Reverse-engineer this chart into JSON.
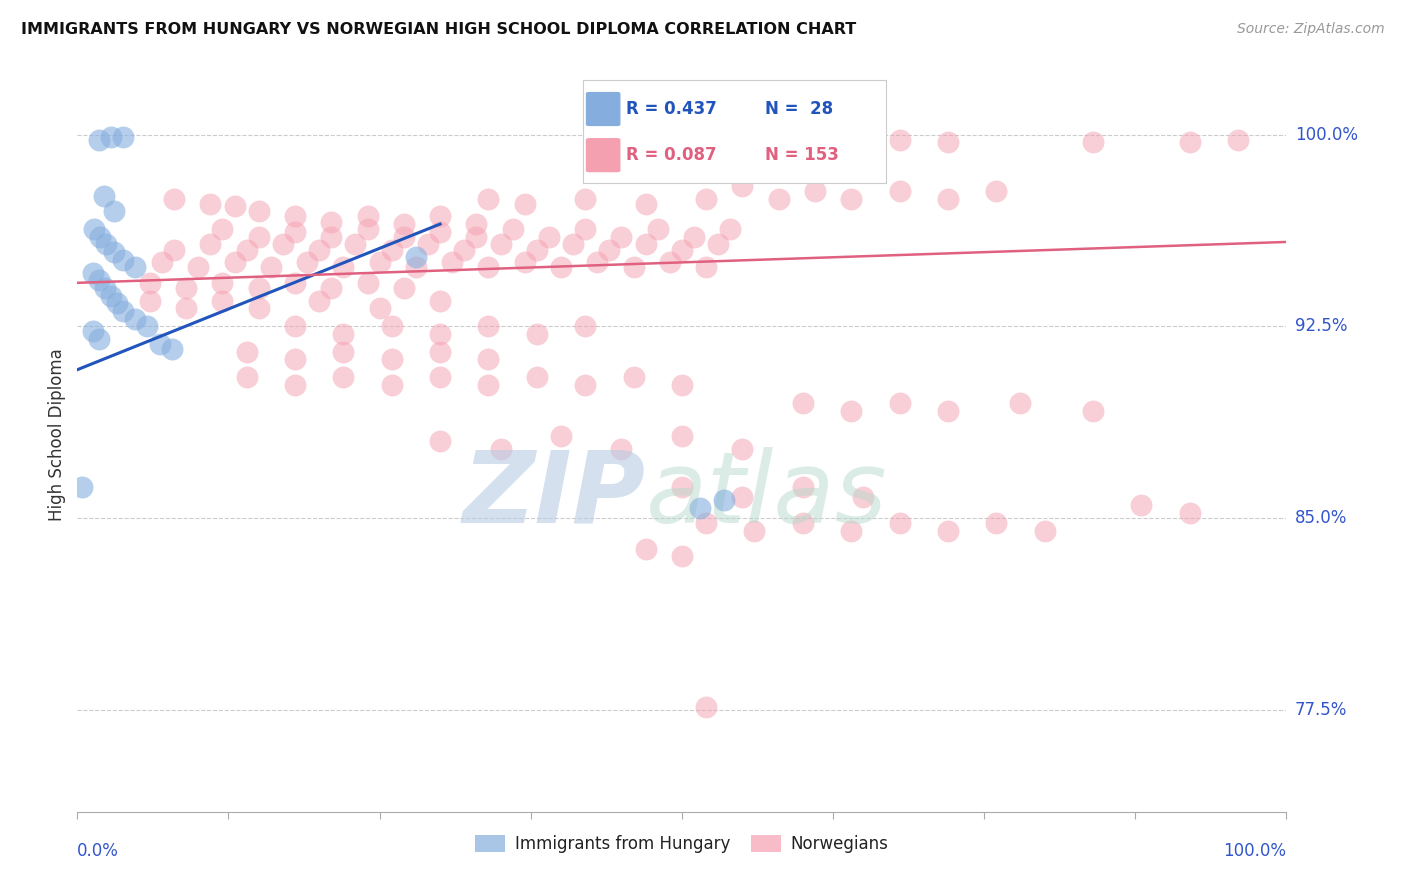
{
  "title": "IMMIGRANTS FROM HUNGARY VS NORWEGIAN HIGH SCHOOL DIPLOMA CORRELATION CHART",
  "source": "Source: ZipAtlas.com",
  "ylabel": "High School Diploma",
  "ytick_labels": [
    "100.0%",
    "92.5%",
    "85.0%",
    "77.5%"
  ],
  "ytick_values": [
    1.0,
    0.925,
    0.85,
    0.775
  ],
  "y_min": 0.735,
  "y_max": 1.03,
  "x_min": 0.0,
  "x_max": 1.0,
  "legend_R_blue": "R = 0.437",
  "legend_N_blue": "N =  28",
  "legend_R_pink": "R = 0.087",
  "legend_N_pink": "N = 153",
  "blue_color": "#85AEDE",
  "pink_color": "#F4A0B0",
  "blue_line_color": "#2255BB",
  "pink_line_color": "#E06080",
  "legend_blue_label": "Immigrants from Hungary",
  "legend_pink_label": "Norwegians",
  "blue_scatter": [
    [
      0.018,
      0.998
    ],
    [
      0.028,
      0.999
    ],
    [
      0.038,
      0.999
    ],
    [
      0.022,
      0.976
    ],
    [
      0.03,
      0.97
    ],
    [
      0.014,
      0.963
    ],
    [
      0.019,
      0.96
    ],
    [
      0.024,
      0.957
    ],
    [
      0.03,
      0.954
    ],
    [
      0.038,
      0.951
    ],
    [
      0.048,
      0.948
    ],
    [
      0.013,
      0.946
    ],
    [
      0.018,
      0.943
    ],
    [
      0.023,
      0.94
    ],
    [
      0.028,
      0.937
    ],
    [
      0.033,
      0.934
    ],
    [
      0.038,
      0.931
    ],
    [
      0.048,
      0.928
    ],
    [
      0.058,
      0.925
    ],
    [
      0.013,
      0.923
    ],
    [
      0.018,
      0.92
    ],
    [
      0.068,
      0.918
    ],
    [
      0.078,
      0.916
    ],
    [
      0.28,
      0.952
    ],
    [
      0.004,
      0.862
    ],
    [
      0.515,
      0.854
    ],
    [
      0.535,
      0.857
    ]
  ],
  "pink_scatter": [
    [
      0.08,
      0.975
    ],
    [
      0.11,
      0.973
    ],
    [
      0.13,
      0.972
    ],
    [
      0.55,
      0.996
    ],
    [
      0.58,
      0.998
    ],
    [
      0.62,
      0.997
    ],
    [
      0.63,
      0.999
    ],
    [
      0.68,
      0.998
    ],
    [
      0.72,
      0.997
    ],
    [
      0.84,
      0.997
    ],
    [
      0.92,
      0.997
    ],
    [
      0.96,
      0.998
    ],
    [
      0.34,
      0.975
    ],
    [
      0.37,
      0.973
    ],
    [
      0.42,
      0.975
    ],
    [
      0.47,
      0.973
    ],
    [
      0.52,
      0.975
    ],
    [
      0.55,
      0.98
    ],
    [
      0.58,
      0.975
    ],
    [
      0.61,
      0.978
    ],
    [
      0.64,
      0.975
    ],
    [
      0.68,
      0.978
    ],
    [
      0.72,
      0.975
    ],
    [
      0.76,
      0.978
    ],
    [
      0.15,
      0.97
    ],
    [
      0.18,
      0.968
    ],
    [
      0.21,
      0.966
    ],
    [
      0.24,
      0.968
    ],
    [
      0.27,
      0.965
    ],
    [
      0.3,
      0.968
    ],
    [
      0.33,
      0.965
    ],
    [
      0.12,
      0.963
    ],
    [
      0.15,
      0.96
    ],
    [
      0.18,
      0.962
    ],
    [
      0.21,
      0.96
    ],
    [
      0.24,
      0.963
    ],
    [
      0.27,
      0.96
    ],
    [
      0.3,
      0.962
    ],
    [
      0.33,
      0.96
    ],
    [
      0.36,
      0.963
    ],
    [
      0.39,
      0.96
    ],
    [
      0.42,
      0.963
    ],
    [
      0.45,
      0.96
    ],
    [
      0.48,
      0.963
    ],
    [
      0.51,
      0.96
    ],
    [
      0.54,
      0.963
    ],
    [
      0.08,
      0.955
    ],
    [
      0.11,
      0.957
    ],
    [
      0.14,
      0.955
    ],
    [
      0.17,
      0.957
    ],
    [
      0.2,
      0.955
    ],
    [
      0.23,
      0.957
    ],
    [
      0.26,
      0.955
    ],
    [
      0.29,
      0.957
    ],
    [
      0.32,
      0.955
    ],
    [
      0.35,
      0.957
    ],
    [
      0.38,
      0.955
    ],
    [
      0.41,
      0.957
    ],
    [
      0.44,
      0.955
    ],
    [
      0.47,
      0.957
    ],
    [
      0.5,
      0.955
    ],
    [
      0.53,
      0.957
    ],
    [
      0.07,
      0.95
    ],
    [
      0.1,
      0.948
    ],
    [
      0.13,
      0.95
    ],
    [
      0.16,
      0.948
    ],
    [
      0.19,
      0.95
    ],
    [
      0.22,
      0.948
    ],
    [
      0.25,
      0.95
    ],
    [
      0.28,
      0.948
    ],
    [
      0.31,
      0.95
    ],
    [
      0.34,
      0.948
    ],
    [
      0.37,
      0.95
    ],
    [
      0.4,
      0.948
    ],
    [
      0.43,
      0.95
    ],
    [
      0.46,
      0.948
    ],
    [
      0.49,
      0.95
    ],
    [
      0.52,
      0.948
    ],
    [
      0.06,
      0.942
    ],
    [
      0.09,
      0.94
    ],
    [
      0.12,
      0.942
    ],
    [
      0.15,
      0.94
    ],
    [
      0.18,
      0.942
    ],
    [
      0.21,
      0.94
    ],
    [
      0.24,
      0.942
    ],
    [
      0.27,
      0.94
    ],
    [
      0.06,
      0.935
    ],
    [
      0.09,
      0.932
    ],
    [
      0.12,
      0.935
    ],
    [
      0.15,
      0.932
    ],
    [
      0.2,
      0.935
    ],
    [
      0.25,
      0.932
    ],
    [
      0.3,
      0.935
    ],
    [
      0.18,
      0.925
    ],
    [
      0.22,
      0.922
    ],
    [
      0.26,
      0.925
    ],
    [
      0.3,
      0.922
    ],
    [
      0.34,
      0.925
    ],
    [
      0.38,
      0.922
    ],
    [
      0.42,
      0.925
    ],
    [
      0.14,
      0.915
    ],
    [
      0.18,
      0.912
    ],
    [
      0.22,
      0.915
    ],
    [
      0.26,
      0.912
    ],
    [
      0.3,
      0.915
    ],
    [
      0.34,
      0.912
    ],
    [
      0.14,
      0.905
    ],
    [
      0.18,
      0.902
    ],
    [
      0.22,
      0.905
    ],
    [
      0.26,
      0.902
    ],
    [
      0.3,
      0.905
    ],
    [
      0.34,
      0.902
    ],
    [
      0.38,
      0.905
    ],
    [
      0.42,
      0.902
    ],
    [
      0.46,
      0.905
    ],
    [
      0.5,
      0.902
    ],
    [
      0.6,
      0.895
    ],
    [
      0.64,
      0.892
    ],
    [
      0.68,
      0.895
    ],
    [
      0.72,
      0.892
    ],
    [
      0.78,
      0.895
    ],
    [
      0.84,
      0.892
    ],
    [
      0.88,
      0.855
    ],
    [
      0.92,
      0.852
    ],
    [
      0.3,
      0.88
    ],
    [
      0.35,
      0.877
    ],
    [
      0.4,
      0.882
    ],
    [
      0.45,
      0.877
    ],
    [
      0.5,
      0.882
    ],
    [
      0.55,
      0.877
    ],
    [
      0.5,
      0.862
    ],
    [
      0.55,
      0.858
    ],
    [
      0.6,
      0.862
    ],
    [
      0.65,
      0.858
    ],
    [
      0.52,
      0.848
    ],
    [
      0.56,
      0.845
    ],
    [
      0.6,
      0.848
    ],
    [
      0.64,
      0.845
    ],
    [
      0.68,
      0.848
    ],
    [
      0.72,
      0.845
    ],
    [
      0.76,
      0.848
    ],
    [
      0.8,
      0.845
    ],
    [
      0.47,
      0.838
    ],
    [
      0.5,
      0.835
    ],
    [
      0.52,
      0.776
    ]
  ],
  "blue_trendline": [
    [
      0.0,
      0.908
    ],
    [
      0.3,
      0.965
    ]
  ],
  "pink_trendline": [
    [
      0.0,
      0.942
    ],
    [
      1.0,
      0.958
    ]
  ]
}
